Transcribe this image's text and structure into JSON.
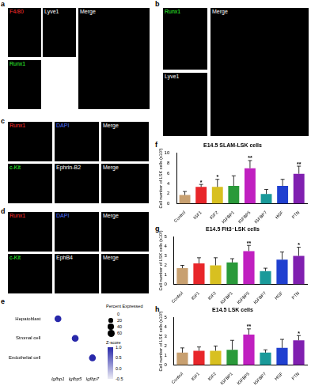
{
  "images": [
    {
      "letter": "a",
      "tiles": [
        {
          "label": "F4/80",
          "color": "#ff3030"
        },
        {
          "label": "Lyve1",
          "color": "#ffffff"
        },
        {
          "label": "Runx1",
          "color": "#30ff30"
        },
        {
          "label": "Merge",
          "color": "#ffffff"
        }
      ]
    },
    {
      "letter": "b",
      "tiles": [
        {
          "label": "Runx1",
          "color": "#30ff30"
        },
        {
          "label": "Lyve1",
          "color": "#ffffff"
        },
        {
          "label": "Merge",
          "color": "#ffffff"
        }
      ]
    },
    {
      "letter": "c",
      "tiles": [
        {
          "label": "Runx1",
          "color": "#ff3030"
        },
        {
          "label": "DAPI",
          "color": "#5070ff"
        },
        {
          "label": "Merge",
          "color": "#ffffff"
        },
        {
          "label": "c-Kit",
          "color": "#30ff30"
        },
        {
          "label": "Ephrin-B2",
          "color": "#ffffff"
        },
        {
          "label": "Merge",
          "color": "#ffffff"
        }
      ]
    },
    {
      "letter": "d",
      "tiles": [
        {
          "label": "Runx1",
          "color": "#ff3030"
        },
        {
          "label": "DAPI",
          "color": "#5070ff"
        },
        {
          "label": "Merge",
          "color": "#ffffff"
        },
        {
          "label": "c-Kit",
          "color": "#30ff30"
        },
        {
          "label": "EphB4",
          "color": "#ffffff"
        },
        {
          "label": "Merge",
          "color": "#ffffff"
        }
      ]
    }
  ],
  "chart_data": [
    {
      "letter": "e",
      "type": "dot",
      "categories": [
        "Igfbp1",
        "Igfbp5",
        "Igfbp7"
      ],
      "rows": [
        "Hepatoblast",
        "Stromal cell",
        "Endothelial cell"
      ],
      "points": [
        {
          "x": "Igfbp1",
          "y": "Hepatoblast",
          "percent": 55,
          "z": 1.0
        },
        {
          "x": "Igfbp5",
          "y": "Stromal cell",
          "percent": 55,
          "z": 1.0
        },
        {
          "x": "Igfbp7",
          "y": "Endothelial cell",
          "percent": 55,
          "z": 1.0
        }
      ],
      "size_legend": {
        "title": "Percent Expressed",
        "ticks": [
          0,
          20,
          40,
          60
        ]
      },
      "color_bar": {
        "title": "Z-score",
        "range": [
          -0.5,
          1.0
        ],
        "ticks": [
          {
            "value": 1.0,
            "label": "1.0"
          },
          {
            "value": 0.5,
            "label": "0.5"
          },
          {
            "value": 0,
            "label": "0.0"
          },
          {
            "value": -0.5,
            "label": "-0.5"
          }
        ]
      }
    },
    {
      "letter": "f",
      "type": "bar",
      "title": "E14.5 SLAM-LSK cells",
      "y_label": "Cell number of LSK cells (x10³)",
      "categories": [
        "Control",
        "IGF1",
        "IGF2",
        "IGFBP1",
        "IGFBP5",
        "IGFBP7",
        "HGF",
        "PTN"
      ],
      "values": [
        1.7,
        3.3,
        3.3,
        3.5,
        7.0,
        1.9,
        3.5,
        5.9
      ],
      "errors": [
        0.7,
        0.5,
        1.5,
        2.0,
        1.5,
        0.9,
        1.3,
        1.5
      ],
      "significance": [
        null,
        "*",
        "*",
        null,
        "**",
        null,
        null,
        "**"
      ],
      "colors": [
        "#c8a070",
        "#e8262a",
        "#d8c020",
        "#2a9a3a",
        "#c020c0",
        "#1a9a9a",
        "#2040d0",
        "#8020b0"
      ],
      "ylim": [
        0,
        10
      ],
      "yticks": [
        0,
        2,
        4,
        6,
        8,
        10
      ],
      "grid": false
    },
    {
      "letter": "g",
      "type": "bar",
      "title": "E14.5 Flt3⁻LSK cells",
      "y_label": "Cell number of LSK cells (x10³)",
      "categories": [
        "Control",
        "IGF1",
        "IGF2",
        "IGFBP1",
        "IGFBP5",
        "IGFBP7",
        "HGF",
        "PTN"
      ],
      "values": [
        1.7,
        2.2,
        2.0,
        2.3,
        3.5,
        1.4,
        2.6,
        3.0
      ],
      "errors": [
        0.3,
        0.6,
        0.8,
        0.4,
        0.6,
        0.3,
        0.8,
        0.9
      ],
      "significance": [
        null,
        null,
        null,
        null,
        "**",
        null,
        null,
        "*"
      ],
      "colors": [
        "#c8a070",
        "#e8262a",
        "#d8c020",
        "#2a9a3a",
        "#c020c0",
        "#1a9a9a",
        "#2040d0",
        "#8020b0"
      ],
      "ylim": [
        0,
        5
      ],
      "yticks": [
        0,
        1,
        2,
        3,
        4,
        5
      ],
      "grid": false
    },
    {
      "letter": "h",
      "type": "bar",
      "title": "E14.5 LSK cells",
      "y_label": "Cell number of LSK cells (x10³)",
      "categories": [
        "Control",
        "IGF1",
        "IGF2",
        "IGFBP1",
        "IGFBP5",
        "IGFBP7",
        "HGF",
        "PTN"
      ],
      "values": [
        1.3,
        1.5,
        1.5,
        1.6,
        3.2,
        1.3,
        1.8,
        2.6
      ],
      "errors": [
        0.5,
        0.4,
        0.5,
        1.0,
        0.6,
        0.3,
        0.9,
        0.5
      ],
      "significance": [
        null,
        null,
        null,
        null,
        "**",
        null,
        null,
        "*"
      ],
      "colors": [
        "#c8a070",
        "#e8262a",
        "#d8c020",
        "#2a9a3a",
        "#c020c0",
        "#1a9a9a",
        "#2040d0",
        "#8020b0"
      ],
      "ylim": [
        0,
        5
      ],
      "yticks": [
        0,
        1,
        2,
        3,
        4,
        5
      ],
      "grid": false
    }
  ]
}
